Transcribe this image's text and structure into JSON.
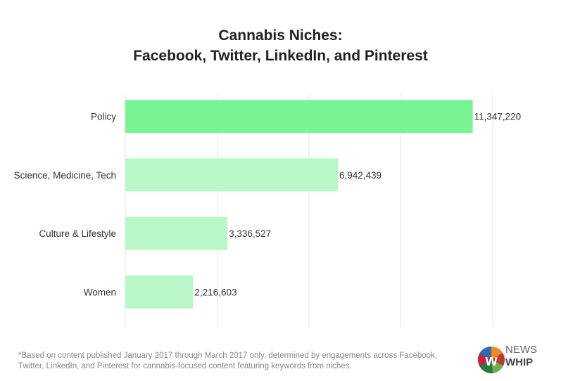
{
  "chart_data": {
    "type": "bar",
    "orientation": "horizontal",
    "title": "Cannabis Niches:\nFacebook, Twitter, LinkedIn, and Pinterest",
    "categories": [
      "Policy",
      "Science, Medicine, Tech",
      "Culture & Lifestyle",
      "Women"
    ],
    "values": [
      11347220,
      6942439,
      3336527,
      2216603
    ],
    "data_labels": [
      "11,347,220",
      "6,942,439",
      "3,336,527",
      "2,216,603"
    ],
    "xlim": [
      0,
      12000000
    ],
    "grid": true,
    "colors": {
      "highlight": "#78f495",
      "default": "#b9f7c8",
      "grid": "#e6e6e6"
    }
  },
  "footnote": "*Based on content published January 2017 through March 2017 only, determined by engagements across Facebook, Twitter, LinkedIn, and Pinterest for cannabis-focused content featuring keywords from niches.",
  "logo": {
    "line1": "NEWS",
    "line2": "WHIP"
  }
}
